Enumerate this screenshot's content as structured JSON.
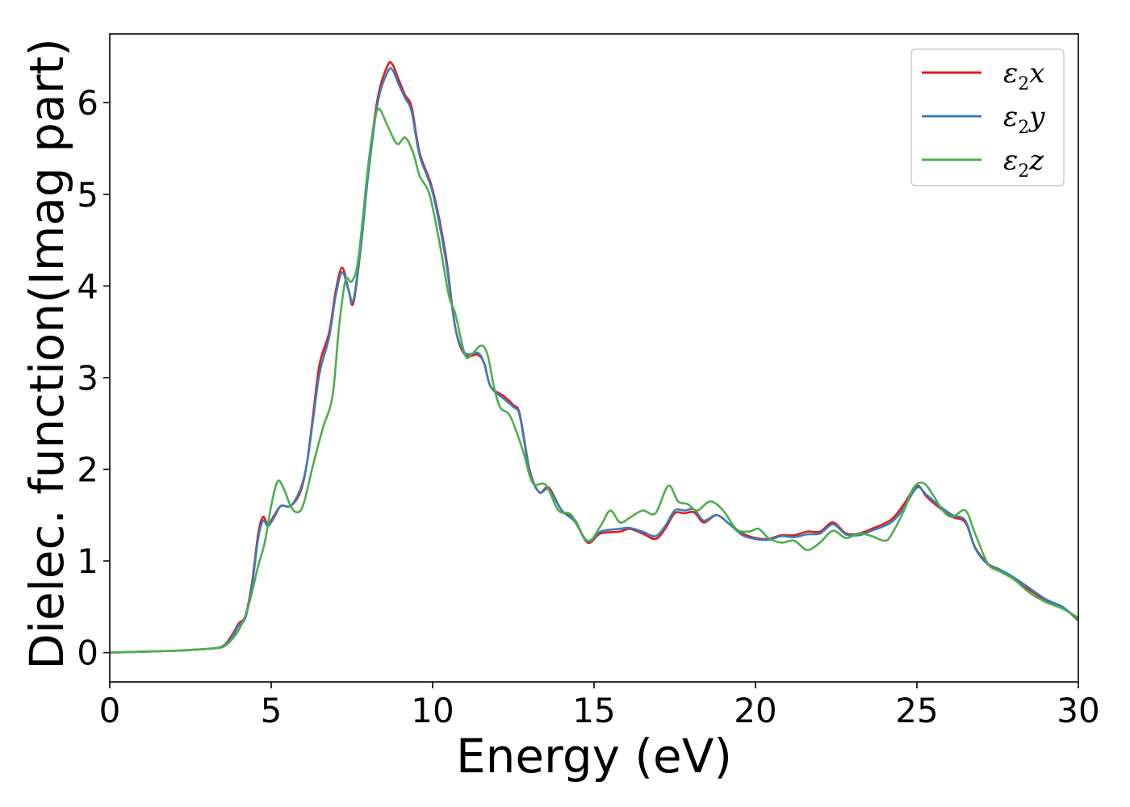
{
  "chart_data": {
    "type": "line",
    "title": "",
    "xlabel": "Energy (eV)",
    "ylabel": "Dielec. function(Imag part)",
    "xlim": [
      0,
      30
    ],
    "ylim": [
      -0.32,
      6.75
    ],
    "xticks": [
      0,
      5,
      10,
      15,
      20,
      25,
      30
    ],
    "xtick_labels": [
      "0",
      "5",
      "10",
      "15",
      "20",
      "25",
      "30"
    ],
    "yticks": [
      0,
      1,
      2,
      3,
      4,
      5,
      6
    ],
    "ytick_labels": [
      "0",
      "1",
      "2",
      "3",
      "4",
      "5",
      "6"
    ],
    "grid": false,
    "legend_position": "top-right",
    "series": [
      {
        "name": "ε2x",
        "name_base": "ε",
        "name_sub": "2",
        "name_var": "x",
        "color": "#e41a1c",
        "points": [
          [
            0,
            0.0
          ],
          [
            1,
            0.01
          ],
          [
            2,
            0.02
          ],
          [
            3,
            0.04
          ],
          [
            3.5,
            0.07
          ],
          [
            3.8,
            0.2
          ],
          [
            4.0,
            0.32
          ],
          [
            4.2,
            0.4
          ],
          [
            4.4,
            0.75
          ],
          [
            4.6,
            1.3
          ],
          [
            4.75,
            1.48
          ],
          [
            4.9,
            1.4
          ],
          [
            5.1,
            1.5
          ],
          [
            5.3,
            1.6
          ],
          [
            5.6,
            1.6
          ],
          [
            5.9,
            1.75
          ],
          [
            6.1,
            2.05
          ],
          [
            6.3,
            2.6
          ],
          [
            6.5,
            3.15
          ],
          [
            6.8,
            3.5
          ],
          [
            7.0,
            3.95
          ],
          [
            7.2,
            4.2
          ],
          [
            7.4,
            3.95
          ],
          [
            7.55,
            3.82
          ],
          [
            7.8,
            4.5
          ],
          [
            8.0,
            5.25
          ],
          [
            8.3,
            6.05
          ],
          [
            8.6,
            6.4
          ],
          [
            8.75,
            6.42
          ],
          [
            8.95,
            6.25
          ],
          [
            9.15,
            6.08
          ],
          [
            9.35,
            5.95
          ],
          [
            9.6,
            5.45
          ],
          [
            10.0,
            5.05
          ],
          [
            10.4,
            4.35
          ],
          [
            10.7,
            3.55
          ],
          [
            11.0,
            3.25
          ],
          [
            11.4,
            3.25
          ],
          [
            11.6,
            3.15
          ],
          [
            11.8,
            2.9
          ],
          [
            12.2,
            2.8
          ],
          [
            12.5,
            2.7
          ],
          [
            12.7,
            2.6
          ],
          [
            13.0,
            2.0
          ],
          [
            13.3,
            1.75
          ],
          [
            13.6,
            1.8
          ],
          [
            14.0,
            1.55
          ],
          [
            14.4,
            1.45
          ],
          [
            14.8,
            1.2
          ],
          [
            15.2,
            1.3
          ],
          [
            15.8,
            1.32
          ],
          [
            16.1,
            1.35
          ],
          [
            16.5,
            1.3
          ],
          [
            16.9,
            1.24
          ],
          [
            17.2,
            1.35
          ],
          [
            17.5,
            1.52
          ],
          [
            17.8,
            1.52
          ],
          [
            18.1,
            1.53
          ],
          [
            18.4,
            1.42
          ],
          [
            18.8,
            1.5
          ],
          [
            19.2,
            1.4
          ],
          [
            19.6,
            1.3
          ],
          [
            20.0,
            1.25
          ],
          [
            20.4,
            1.24
          ],
          [
            20.8,
            1.28
          ],
          [
            21.2,
            1.28
          ],
          [
            21.6,
            1.32
          ],
          [
            22.0,
            1.32
          ],
          [
            22.4,
            1.42
          ],
          [
            22.8,
            1.3
          ],
          [
            23.2,
            1.3
          ],
          [
            23.6,
            1.35
          ],
          [
            24.2,
            1.45
          ],
          [
            24.6,
            1.62
          ],
          [
            25.0,
            1.82
          ],
          [
            25.3,
            1.7
          ],
          [
            25.7,
            1.58
          ],
          [
            26.1,
            1.48
          ],
          [
            26.5,
            1.42
          ],
          [
            26.8,
            1.15
          ],
          [
            27.2,
            0.97
          ],
          [
            27.6,
            0.9
          ],
          [
            28.0,
            0.8
          ],
          [
            28.5,
            0.68
          ],
          [
            29.0,
            0.57
          ],
          [
            29.5,
            0.5
          ],
          [
            30,
            0.35
          ]
        ]
      },
      {
        "name": "ε2y",
        "name_base": "ε",
        "name_sub": "2",
        "name_var": "y",
        "color": "#377eb8",
        "points": [
          [
            0,
            0.0
          ],
          [
            1,
            0.01
          ],
          [
            2,
            0.02
          ],
          [
            3,
            0.04
          ],
          [
            3.5,
            0.07
          ],
          [
            3.8,
            0.18
          ],
          [
            4.0,
            0.3
          ],
          [
            4.2,
            0.38
          ],
          [
            4.4,
            0.72
          ],
          [
            4.6,
            1.25
          ],
          [
            4.75,
            1.44
          ],
          [
            4.9,
            1.38
          ],
          [
            5.1,
            1.48
          ],
          [
            5.3,
            1.6
          ],
          [
            5.6,
            1.6
          ],
          [
            5.9,
            1.78
          ],
          [
            6.1,
            2.05
          ],
          [
            6.3,
            2.55
          ],
          [
            6.5,
            3.05
          ],
          [
            6.8,
            3.45
          ],
          [
            7.0,
            3.9
          ],
          [
            7.2,
            4.15
          ],
          [
            7.4,
            3.95
          ],
          [
            7.55,
            3.85
          ],
          [
            7.8,
            4.5
          ],
          [
            8.0,
            5.2
          ],
          [
            8.3,
            6.0
          ],
          [
            8.6,
            6.33
          ],
          [
            8.75,
            6.36
          ],
          [
            8.95,
            6.2
          ],
          [
            9.15,
            6.05
          ],
          [
            9.35,
            5.9
          ],
          [
            9.6,
            5.42
          ],
          [
            10.0,
            5.02
          ],
          [
            10.4,
            4.3
          ],
          [
            10.7,
            3.55
          ],
          [
            11.0,
            3.27
          ],
          [
            11.4,
            3.27
          ],
          [
            11.6,
            3.15
          ],
          [
            11.8,
            2.9
          ],
          [
            12.2,
            2.77
          ],
          [
            12.5,
            2.68
          ],
          [
            12.7,
            2.58
          ],
          [
            13.0,
            1.98
          ],
          [
            13.3,
            1.75
          ],
          [
            13.6,
            1.78
          ],
          [
            14.0,
            1.55
          ],
          [
            14.4,
            1.43
          ],
          [
            14.8,
            1.21
          ],
          [
            15.2,
            1.32
          ],
          [
            15.8,
            1.35
          ],
          [
            16.1,
            1.36
          ],
          [
            16.5,
            1.32
          ],
          [
            16.9,
            1.27
          ],
          [
            17.2,
            1.38
          ],
          [
            17.5,
            1.55
          ],
          [
            17.8,
            1.55
          ],
          [
            18.1,
            1.56
          ],
          [
            18.4,
            1.44
          ],
          [
            18.8,
            1.5
          ],
          [
            19.2,
            1.4
          ],
          [
            19.6,
            1.28
          ],
          [
            20.0,
            1.24
          ],
          [
            20.4,
            1.23
          ],
          [
            20.8,
            1.27
          ],
          [
            21.2,
            1.26
          ],
          [
            21.6,
            1.29
          ],
          [
            22.0,
            1.3
          ],
          [
            22.4,
            1.4
          ],
          [
            22.8,
            1.29
          ],
          [
            23.2,
            1.28
          ],
          [
            23.6,
            1.33
          ],
          [
            24.2,
            1.42
          ],
          [
            24.6,
            1.58
          ],
          [
            25.0,
            1.8
          ],
          [
            25.3,
            1.72
          ],
          [
            25.7,
            1.6
          ],
          [
            26.1,
            1.5
          ],
          [
            26.5,
            1.44
          ],
          [
            26.8,
            1.14
          ],
          [
            27.2,
            0.96
          ],
          [
            27.6,
            0.9
          ],
          [
            28.0,
            0.82
          ],
          [
            28.5,
            0.7
          ],
          [
            29.0,
            0.58
          ],
          [
            29.5,
            0.5
          ],
          [
            30,
            0.36
          ]
        ]
      },
      {
        "name": "ε2z",
        "name_base": "ε",
        "name_sub": "2",
        "name_var": "z",
        "color": "#4daf4a",
        "points": [
          [
            0,
            0.0
          ],
          [
            1,
            0.01
          ],
          [
            2,
            0.02
          ],
          [
            3,
            0.04
          ],
          [
            3.5,
            0.06
          ],
          [
            3.8,
            0.15
          ],
          [
            4.0,
            0.25
          ],
          [
            4.2,
            0.4
          ],
          [
            4.4,
            0.65
          ],
          [
            4.6,
            0.95
          ],
          [
            4.8,
            1.2
          ],
          [
            5.0,
            1.6
          ],
          [
            5.2,
            1.87
          ],
          [
            5.4,
            1.78
          ],
          [
            5.6,
            1.6
          ],
          [
            5.8,
            1.53
          ],
          [
            6.0,
            1.62
          ],
          [
            6.3,
            2.05
          ],
          [
            6.6,
            2.45
          ],
          [
            6.9,
            2.8
          ],
          [
            7.1,
            3.55
          ],
          [
            7.3,
            4.06
          ],
          [
            7.5,
            4.05
          ],
          [
            7.7,
            4.3
          ],
          [
            8.0,
            5.3
          ],
          [
            8.2,
            5.8
          ],
          [
            8.35,
            5.93
          ],
          [
            8.6,
            5.75
          ],
          [
            8.9,
            5.55
          ],
          [
            9.15,
            5.62
          ],
          [
            9.4,
            5.45
          ],
          [
            9.6,
            5.2
          ],
          [
            9.9,
            5.0
          ],
          [
            10.2,
            4.5
          ],
          [
            10.5,
            3.9
          ],
          [
            10.7,
            3.7
          ],
          [
            11.0,
            3.25
          ],
          [
            11.2,
            3.25
          ],
          [
            11.5,
            3.35
          ],
          [
            11.7,
            3.25
          ],
          [
            11.9,
            2.9
          ],
          [
            12.1,
            2.67
          ],
          [
            12.4,
            2.58
          ],
          [
            12.8,
            2.2
          ],
          [
            13.1,
            1.85
          ],
          [
            13.5,
            1.83
          ],
          [
            13.9,
            1.55
          ],
          [
            14.3,
            1.5
          ],
          [
            14.8,
            1.22
          ],
          [
            15.2,
            1.38
          ],
          [
            15.5,
            1.55
          ],
          [
            15.8,
            1.42
          ],
          [
            16.1,
            1.47
          ],
          [
            16.5,
            1.55
          ],
          [
            16.9,
            1.52
          ],
          [
            17.3,
            1.82
          ],
          [
            17.6,
            1.65
          ],
          [
            17.9,
            1.62
          ],
          [
            18.2,
            1.55
          ],
          [
            18.6,
            1.65
          ],
          [
            19.0,
            1.55
          ],
          [
            19.4,
            1.35
          ],
          [
            19.8,
            1.32
          ],
          [
            20.1,
            1.35
          ],
          [
            20.4,
            1.25
          ],
          [
            20.8,
            1.2
          ],
          [
            21.2,
            1.22
          ],
          [
            21.6,
            1.12
          ],
          [
            22.0,
            1.2
          ],
          [
            22.4,
            1.33
          ],
          [
            22.8,
            1.25
          ],
          [
            23.2,
            1.3
          ],
          [
            23.6,
            1.27
          ],
          [
            24.0,
            1.22
          ],
          [
            24.2,
            1.28
          ],
          [
            24.6,
            1.55
          ],
          [
            24.9,
            1.8
          ],
          [
            25.2,
            1.85
          ],
          [
            25.5,
            1.72
          ],
          [
            25.8,
            1.55
          ],
          [
            26.1,
            1.48
          ],
          [
            26.5,
            1.55
          ],
          [
            26.8,
            1.3
          ],
          [
            27.2,
            0.97
          ],
          [
            27.6,
            0.88
          ],
          [
            28.0,
            0.8
          ],
          [
            28.5,
            0.65
          ],
          [
            29.0,
            0.55
          ],
          [
            29.5,
            0.48
          ],
          [
            30,
            0.38
          ]
        ]
      }
    ]
  }
}
